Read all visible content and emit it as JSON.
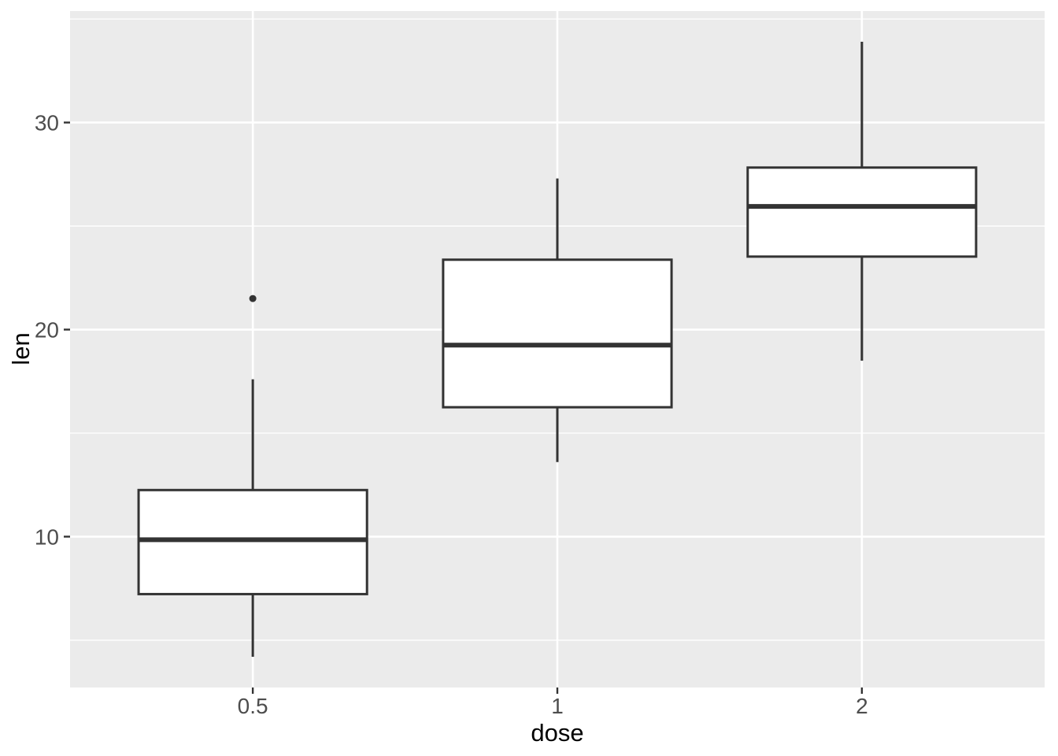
{
  "chart_data": {
    "type": "boxplot",
    "title": "",
    "xlabel": "dose",
    "ylabel": "len",
    "categories": [
      "0.5",
      "1",
      "2"
    ],
    "ylim": [
      2.715,
      35.385
    ],
    "y_major_ticks": [
      10,
      20,
      30
    ],
    "y_minor_gridlines": [
      5,
      15,
      25,
      35
    ],
    "grid": "on",
    "legend": "none",
    "series": [
      {
        "category": "0.5",
        "whisker_low": 4.2,
        "q1": 7.225,
        "median": 9.85,
        "q3": 12.25,
        "whisker_high": 17.6,
        "outliers": [
          21.5
        ]
      },
      {
        "category": "1",
        "whisker_low": 13.6,
        "q1": 16.25,
        "median": 19.25,
        "q3": 23.375,
        "whisker_high": 27.3,
        "outliers": []
      },
      {
        "category": "2",
        "whisker_low": 18.5,
        "q1": 23.525,
        "median": 25.95,
        "q3": 27.825,
        "whisker_high": 33.9,
        "outliers": []
      }
    ],
    "colors": {
      "background": "#FFFFFF",
      "panel_bg": "#EBEBEB",
      "grid": "#FFFFFF",
      "stroke": "#333333",
      "box_fill": "#FFFFFF",
      "tick": "#333333",
      "tick_label": "#4D4D4D",
      "title": "#000000"
    }
  }
}
